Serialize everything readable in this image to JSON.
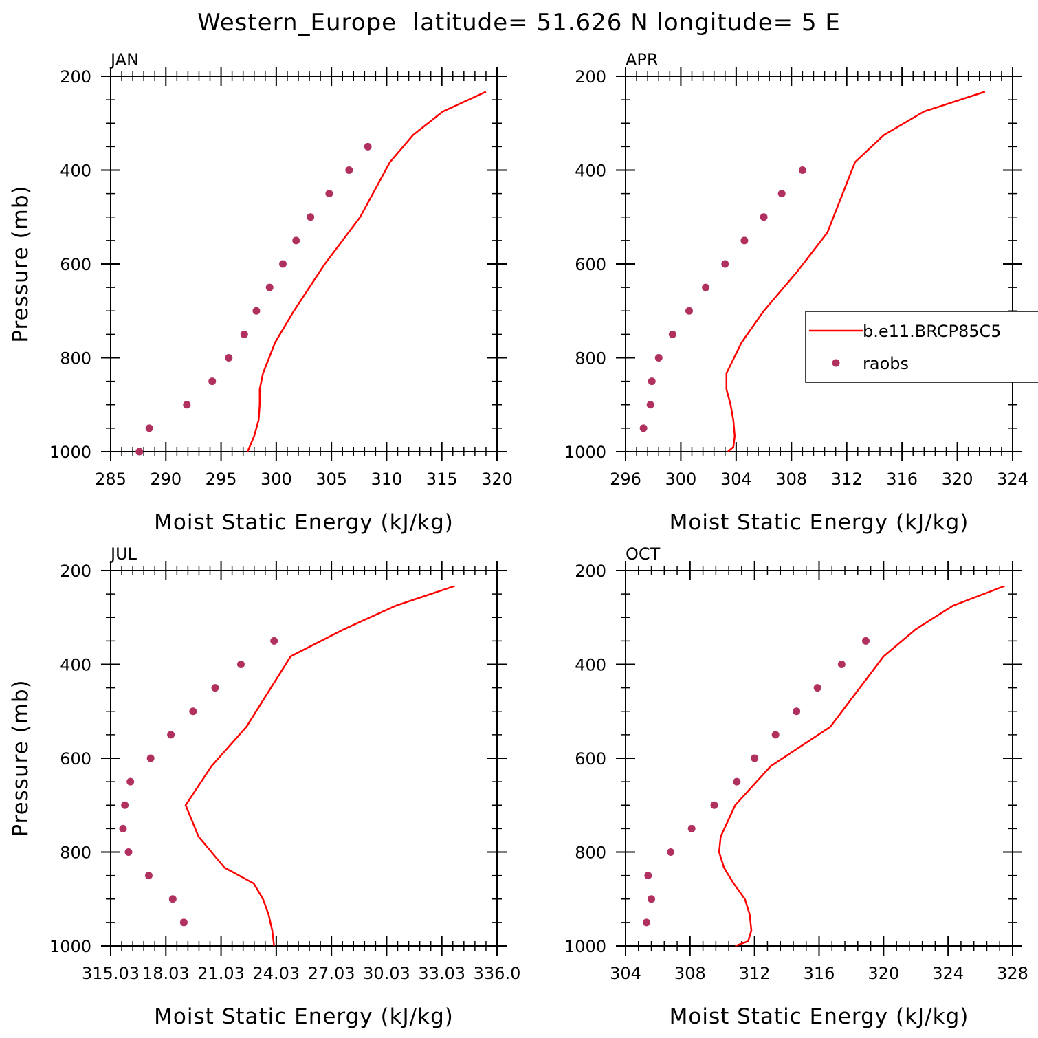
{
  "title": "Western_Europe  latitude= 51.626 N longitude= 5 E",
  "colors": {
    "model": "#ff0000",
    "obs": "#b03060",
    "axis": "#000000"
  },
  "chart_data": [
    {
      "type": "line",
      "panel": "JAN",
      "xlabel": "Moist Static Energy (kJ/kg)",
      "ylabel": "Pressure (mb)",
      "xlim": [
        285,
        320
      ],
      "ylim": [
        1000,
        200
      ],
      "xticks": [
        "285",
        "290",
        "295",
        "300",
        "305",
        "310",
        "315",
        "320"
      ],
      "yticks": [
        "200",
        "400",
        "600",
        "800",
        "1000"
      ],
      "series": [
        {
          "style": "line",
          "x": [
            297.4,
            298.0,
            298.4,
            298.5,
            298.5,
            298.8,
            299.9,
            301.6,
            304.4,
            307.6,
            310.3,
            312.4,
            315.1,
            319.0
          ],
          "y": [
            1000,
            967,
            933,
            900,
            867,
            833,
            767,
            700,
            600,
            500,
            383,
            325,
            275,
            233
          ]
        },
        {
          "style": "scatter",
          "x": [
            287.6,
            288.5,
            291.9,
            294.2,
            295.7,
            297.1,
            298.2,
            299.4,
            300.6,
            301.8,
            303.1,
            304.8,
            306.6,
            308.3
          ],
          "y": [
            1000,
            950,
            900,
            850,
            800,
            750,
            700,
            650,
            600,
            550,
            500,
            450,
            400,
            350
          ]
        }
      ]
    },
    {
      "type": "line",
      "panel": "APR",
      "xlabel": "Moist Static Energy (kJ/kg)",
      "ylabel": "",
      "xlim": [
        296,
        324
      ],
      "ylim": [
        1000,
        200
      ],
      "xticks": [
        "296",
        "300",
        "304",
        "308",
        "312",
        "316",
        "320",
        "324"
      ],
      "yticks": [
        "200",
        "400",
        "600",
        "800",
        "1000"
      ],
      "legend": {
        "position": "right",
        "entries": [
          "b.e11.BRCP85C5",
          "raobs"
        ]
      },
      "series": [
        {
          "name": "b.e11.BRCP85C5",
          "style": "line",
          "x": [
            303.4,
            303.8,
            303.9,
            303.8,
            303.6,
            303.3,
            303.3,
            304.4,
            306.0,
            308.4,
            310.6,
            312.6,
            314.7,
            317.6,
            322.0
          ],
          "y": [
            1000,
            990,
            967,
            933,
            900,
            867,
            833,
            767,
            700,
            617,
            533,
            383,
            325,
            275,
            233
          ]
        },
        {
          "name": "raobs",
          "style": "scatter",
          "x": [
            297.3,
            297.8,
            297.9,
            298.4,
            299.4,
            300.6,
            301.8,
            303.2,
            304.6,
            306.0,
            307.3,
            308.8
          ],
          "y": [
            950,
            900,
            850,
            800,
            750,
            700,
            650,
            600,
            550,
            500,
            450,
            400
          ]
        }
      ]
    },
    {
      "type": "line",
      "panel": "JUL",
      "xlabel": "Moist Static Energy (kJ/kg)",
      "ylabel": "Pressure (mb)",
      "xlim": [
        315.03,
        336.0
      ],
      "ylim": [
        1000,
        200
      ],
      "xticks": [
        "315.03",
        "18.03",
        "21.03",
        "24.03",
        "27.03",
        "30.03",
        "33.03",
        "336.0"
      ],
      "yticks": [
        "200",
        "400",
        "600",
        "800",
        "1000"
      ],
      "series": [
        {
          "style": "line",
          "x": [
            323.9,
            323.8,
            323.6,
            323.3,
            322.8,
            321.2,
            319.8,
            319.1,
            320.5,
            322.4,
            324.8,
            327.7,
            330.5,
            333.7
          ],
          "y": [
            1000,
            967,
            933,
            900,
            867,
            833,
            767,
            700,
            617,
            533,
            383,
            325,
            275,
            233
          ]
        },
        {
          "style": "scatter",
          "x": [
            319.0,
            318.4,
            317.1,
            316.0,
            315.7,
            315.8,
            316.1,
            317.2,
            318.3,
            319.5,
            320.7,
            322.1,
            323.9
          ],
          "y": [
            950,
            900,
            850,
            800,
            750,
            700,
            650,
            600,
            550,
            500,
            450,
            400,
            350
          ]
        }
      ]
    },
    {
      "type": "line",
      "panel": "OCT",
      "xlabel": "Moist Static Energy (kJ/kg)",
      "ylabel": "",
      "xlim": [
        304,
        328
      ],
      "ylim": [
        1000,
        200
      ],
      "xticks": [
        "304",
        "308",
        "312",
        "316",
        "320",
        "324",
        "328"
      ],
      "yticks": [
        "200",
        "400",
        "600",
        "800",
        "1000"
      ],
      "series": [
        {
          "style": "line",
          "x": [
            310.8,
            311.6,
            311.8,
            311.7,
            311.4,
            310.7,
            310.1,
            309.8,
            309.9,
            310.8,
            313.0,
            316.7,
            320.0,
            322.0,
            324.3,
            327.5
          ],
          "y": [
            1000,
            990,
            967,
            933,
            900,
            867,
            833,
            800,
            767,
            700,
            617,
            533,
            383,
            325,
            275,
            233
          ]
        },
        {
          "style": "scatter",
          "x": [
            305.3,
            305.6,
            305.4,
            306.8,
            308.1,
            309.5,
            310.9,
            312.0,
            313.3,
            314.6,
            315.9,
            317.4,
            318.9
          ],
          "y": [
            950,
            900,
            850,
            800,
            750,
            700,
            650,
            600,
            550,
            500,
            450,
            400,
            350
          ]
        }
      ]
    }
  ]
}
